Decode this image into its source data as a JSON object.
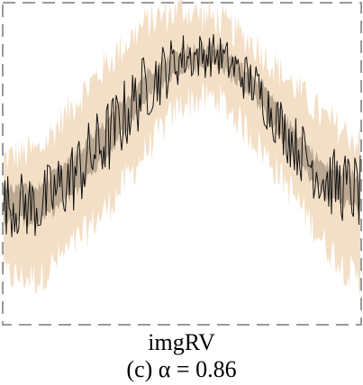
{
  "captions": {
    "method": "imgRV",
    "label": "(c) α = 0.86"
  },
  "colors": {
    "frame": "#9a9a9a",
    "band_outer": "#f2dcc0",
    "band_inner": "#8a7a68",
    "line": "#111111"
  },
  "chart_data": {
    "type": "line",
    "title": "",
    "xlabel": "",
    "ylabel": "",
    "grid": false,
    "frame": "dashed",
    "xlim": [
      0,
      1
    ],
    "ylim": [
      -0.15,
      1.05
    ],
    "x_profile": [
      0.0,
      0.1,
      0.2,
      0.3,
      0.4,
      0.5,
      0.6,
      0.7,
      0.8,
      0.9,
      1.0
    ],
    "series": [
      {
        "role": "mean",
        "values": [
          0.3,
          0.29,
          0.41,
          0.56,
          0.74,
          0.85,
          0.86,
          0.75,
          0.55,
          0.39,
          0.34
        ]
      },
      {
        "role": "band_outer_upper",
        "values": [
          0.47,
          0.5,
          0.68,
          0.84,
          0.98,
          1.03,
          0.99,
          0.9,
          0.76,
          0.62,
          0.53
        ]
      },
      {
        "role": "band_outer_lower",
        "values": [
          0.03,
          0.02,
          0.15,
          0.3,
          0.5,
          0.68,
          0.7,
          0.55,
          0.36,
          0.15,
          0.0
        ]
      },
      {
        "role": "band_inner_upper",
        "values": [
          0.36,
          0.36,
          0.48,
          0.62,
          0.79,
          0.88,
          0.89,
          0.79,
          0.6,
          0.44,
          0.4
        ]
      },
      {
        "role": "band_inner_lower",
        "values": [
          0.24,
          0.23,
          0.34,
          0.5,
          0.69,
          0.81,
          0.82,
          0.7,
          0.5,
          0.33,
          0.28
        ]
      }
    ]
  }
}
